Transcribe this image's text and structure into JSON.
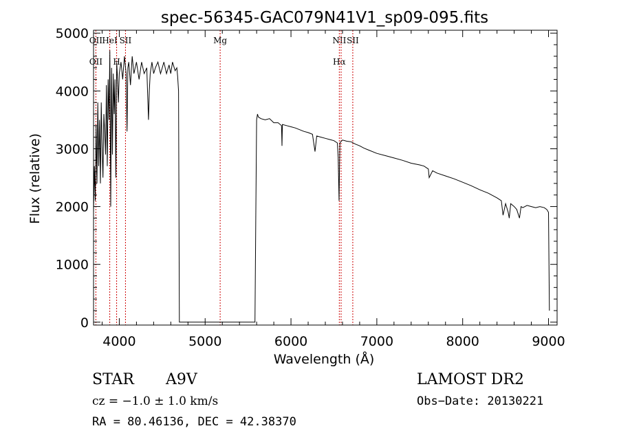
{
  "chart_data": {
    "type": "line",
    "title": "spec-56345-GAC079N41V1_sp09-095.fits",
    "xlabel": "Wavelength (Å)",
    "ylabel": "Flux (relative)",
    "xlim": [
      3700,
      9100
    ],
    "ylim": [
      -50,
      5050
    ],
    "xticks": [
      4000,
      5000,
      6000,
      7000,
      8000,
      9000
    ],
    "xtick_labels": [
      "4000",
      "5000",
      "6000",
      "7000",
      "8000",
      "9000"
    ],
    "yticks": [
      0,
      1000,
      2000,
      3000,
      4000,
      5000
    ],
    "ytick_labels": [
      "0",
      "1000",
      "2000",
      "3000",
      "4000",
      "5000"
    ],
    "grid": false,
    "series": [
      {
        "x": [
          3700,
          3710,
          3720,
          3730,
          3740,
          3750,
          3760,
          3770,
          3780,
          3790,
          3800,
          3810,
          3820,
          3830,
          3840,
          3850,
          3860,
          3870,
          3880,
          3890,
          3900,
          3910,
          3920,
          3930,
          3940,
          3950,
          3960,
          3970,
          3980,
          3990,
          4000,
          4020,
          4040,
          4060,
          4080,
          4090,
          4100,
          4110,
          4130,
          4150,
          4170,
          4200,
          4230,
          4260,
          4290,
          4320,
          4340,
          4350,
          4360,
          4380,
          4400,
          4420,
          4450,
          4480,
          4500,
          4520,
          4550,
          4580,
          4600,
          4620,
          4650,
          4670,
          4680,
          4690,
          4695,
          4700,
          4710,
          5580,
          5590,
          5600,
          5610,
          5620,
          5650,
          5700,
          5750,
          5800,
          5850,
          5890,
          5895,
          5900,
          5950,
          6000,
          6050,
          6100,
          6150,
          6200,
          6250,
          6280,
          6300,
          6350,
          6400,
          6450,
          6500,
          6540,
          6550,
          6560,
          6563,
          6570,
          6580,
          6600,
          6650,
          6700,
          6750,
          6800,
          6850,
          6900,
          7000,
          7100,
          7200,
          7300,
          7400,
          7500,
          7550,
          7600,
          7610,
          7650,
          7700,
          7800,
          7900,
          8000,
          8100,
          8200,
          8300,
          8400,
          8450,
          8470,
          8500,
          8530,
          8542,
          8560,
          8600,
          8630,
          8662,
          8680,
          8700,
          8750,
          8800,
          8850,
          8900,
          8950,
          8980,
          9000,
          9010
        ],
        "y": [
          1900,
          2700,
          2100,
          3400,
          2400,
          3800,
          2700,
          3500,
          2400,
          3800,
          3000,
          2500,
          3600,
          3300,
          2900,
          4100,
          2700,
          4200,
          3500,
          4700,
          2000,
          4400,
          2900,
          4300,
          3600,
          4200,
          2500,
          4500,
          4200,
          3800,
          4300,
          4500,
          4200,
          4600,
          4300,
          3300,
          4400,
          4500,
          4100,
          4600,
          4300,
          4500,
          4200,
          4500,
          4300,
          4400,
          3500,
          4000,
          4300,
          4500,
          4300,
          4400,
          4500,
          4300,
          4400,
          4500,
          4300,
          4450,
          4300,
          4500,
          4350,
          4400,
          4250,
          4000,
          2000,
          0,
          0,
          0,
          1800,
          3500,
          3600,
          3550,
          3520,
          3500,
          3520,
          3450,
          3450,
          3400,
          3050,
          3420,
          3400,
          3380,
          3360,
          3330,
          3300,
          3280,
          3250,
          2950,
          3220,
          3200,
          3180,
          3160,
          3140,
          3100,
          2850,
          2100,
          2400,
          3100,
          3120,
          3150,
          3130,
          3120,
          3080,
          3050,
          3010,
          2980,
          2920,
          2880,
          2840,
          2800,
          2750,
          2720,
          2700,
          2650,
          2500,
          2620,
          2580,
          2530,
          2480,
          2420,
          2360,
          2290,
          2230,
          2150,
          2100,
          1850,
          2050,
          1900,
          1800,
          2050,
          2000,
          1950,
          1800,
          2000,
          1980,
          2020,
          2000,
          1980,
          2000,
          1980,
          1950,
          1900,
          200
        ]
      }
    ],
    "lines": [
      {
        "x": 3727,
        "label": "OII",
        "label2": "OII"
      },
      {
        "x": 3889,
        "label": "HeI",
        "label2": ""
      },
      {
        "x": 3969,
        "label": "",
        "label2": "H"
      },
      {
        "x": 4072,
        "label": "SII",
        "label2": ""
      },
      {
        "x": 5175,
        "label": "Mg",
        "label2": ""
      },
      {
        "x": 6563,
        "label": "NII",
        "label2": "Hα"
      },
      {
        "x": 6584,
        "label": "",
        "label2": ""
      },
      {
        "x": 6720,
        "label": "SII",
        "label2": ""
      }
    ]
  },
  "info": {
    "class": "STAR",
    "subclass": "A9V",
    "survey": "LAMOST DR2",
    "cz": "cz = −1.0 ± 1.0 km/s",
    "obs_date": "Obs−Date: 20130221",
    "radec": "RA =  80.46136, DEC =  42.38370"
  },
  "colors": {
    "spectrum": "#000000",
    "line_markers": "#cc0000",
    "axes": "#000000"
  }
}
